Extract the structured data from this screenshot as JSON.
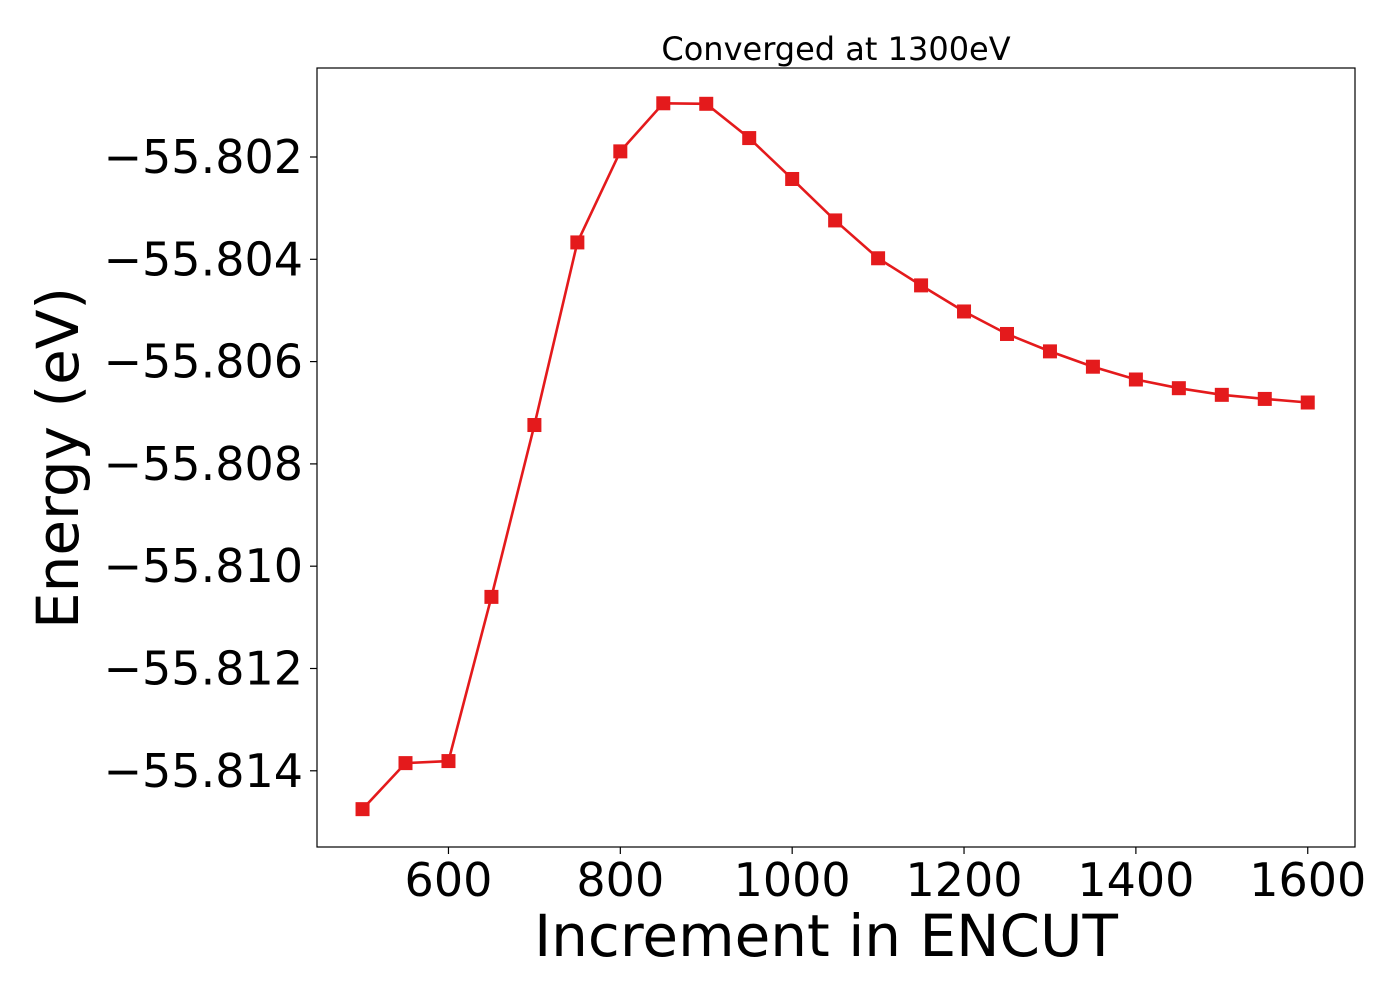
{
  "chart_data": {
    "type": "line",
    "title": "Converged at 1300eV",
    "xlabel": "Increment in ENCUT",
    "ylabel": "Energy (eV)",
    "xlim": [
      447,
      1655
    ],
    "ylim": [
      -55.81549,
      -55.80026
    ],
    "x_ticks": [
      600,
      800,
      1000,
      1200,
      1400,
      1600
    ],
    "x_tick_labels": [
      "600",
      "800",
      "1000",
      "1200",
      "1400",
      "1600"
    ],
    "y_ticks": [
      -55.802,
      -55.804,
      -55.806,
      -55.808,
      -55.81,
      -55.812,
      -55.814
    ],
    "y_tick_labels": [
      "−55.802",
      "−55.804",
      "−55.806",
      "−55.808",
      "−55.810",
      "−55.812",
      "−55.814"
    ],
    "grid": false,
    "marker": "square",
    "color": "#e41a1c",
    "series": [
      {
        "x": [
          500,
          550,
          600,
          650,
          700,
          750,
          800,
          850,
          900,
          950,
          1000,
          1050,
          1100,
          1150,
          1200,
          1250,
          1300,
          1350,
          1400,
          1450,
          1500,
          1550,
          1600
        ],
        "y": [
          -55.81475,
          -55.81385,
          -55.81381,
          -55.8106,
          -55.80724,
          -55.80367,
          -55.80189,
          -55.80095,
          -55.80096,
          -55.80163,
          -55.80243,
          -55.80324,
          -55.80398,
          -55.80451,
          -55.80502,
          -55.80546,
          -55.8058,
          -55.8061,
          -55.80635,
          -55.80652,
          -55.80665,
          -55.80673,
          -55.8068
        ]
      }
    ]
  }
}
